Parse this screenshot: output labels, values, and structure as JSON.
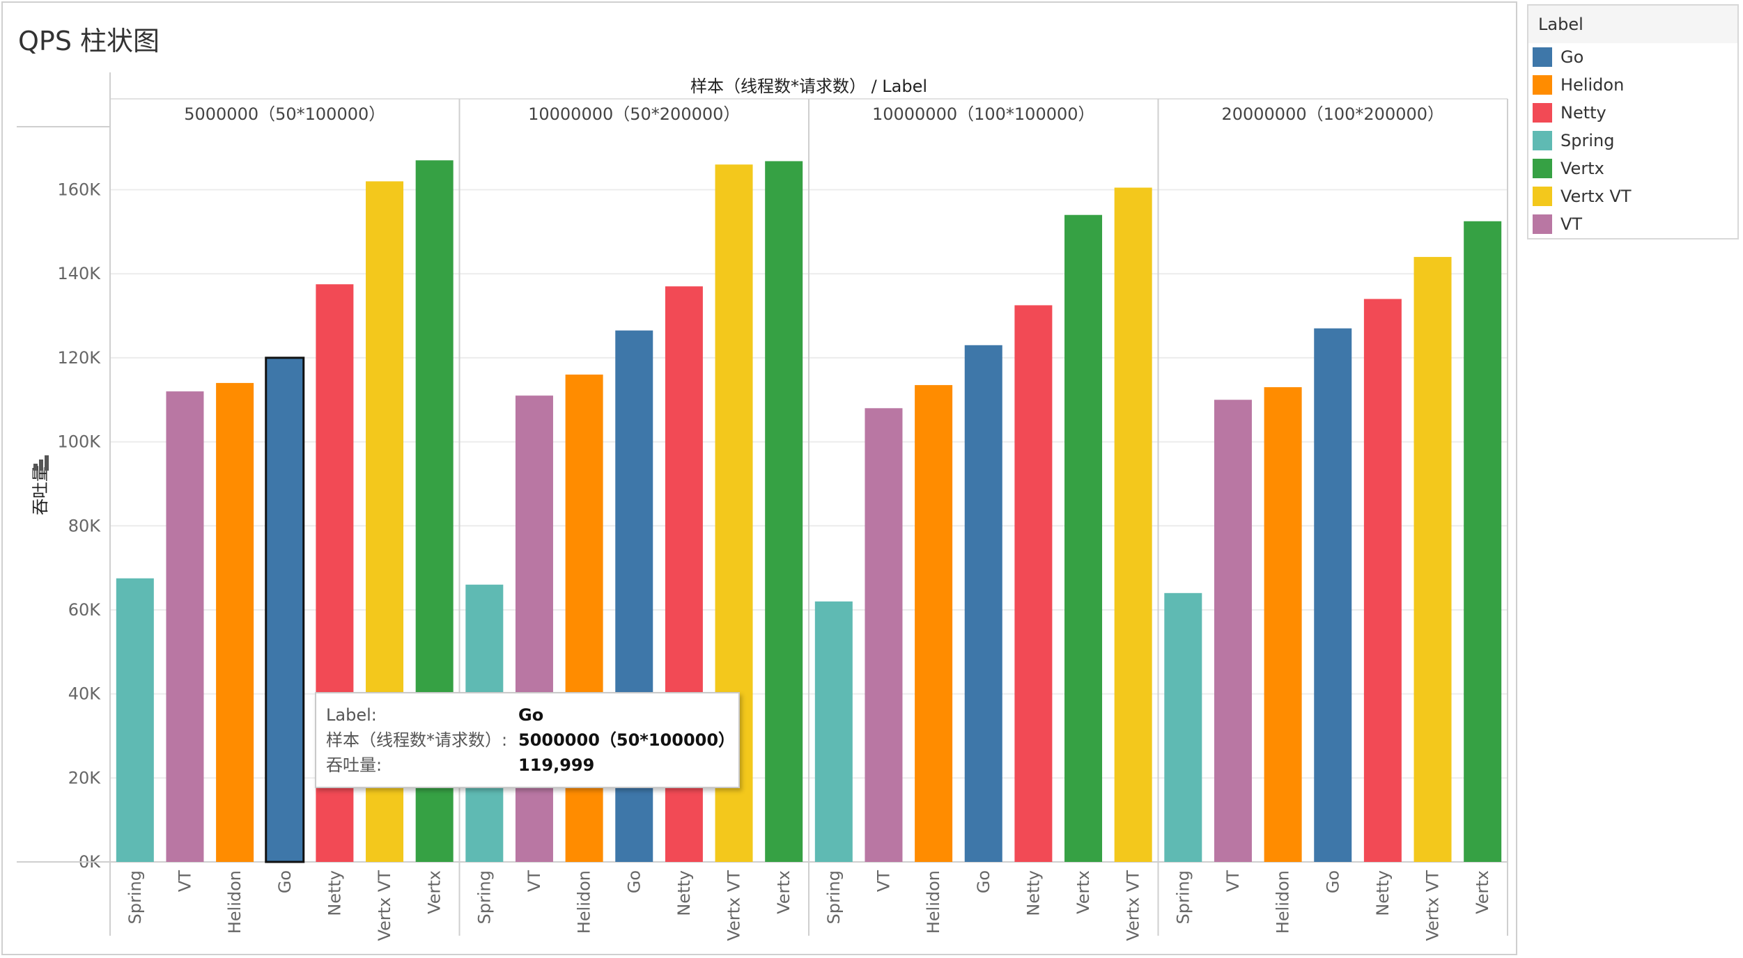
{
  "chart_data": {
    "type": "bar",
    "title": "QPS 柱状图",
    "column_header": "样本（线程数*请求数） / Label",
    "ylabel": "吞吐量",
    "ylim": [
      0,
      175000
    ],
    "yticks": [
      0,
      20000,
      40000,
      60000,
      80000,
      100000,
      120000,
      140000,
      160000
    ],
    "ytick_labels": [
      "0K",
      "20K",
      "40K",
      "60K",
      "80K",
      "100K",
      "120K",
      "140K",
      "160K"
    ],
    "grid": true,
    "legend_position": "right",
    "panels": [
      {
        "name": "5000000（50*100000）",
        "categories": [
          "Spring",
          "VT",
          "Helidon",
          "Go",
          "Netty",
          "Vertx VT",
          "Vertx"
        ],
        "values": [
          67500,
          112000,
          114000,
          119999,
          137500,
          162000,
          167000
        ]
      },
      {
        "name": "10000000（50*200000）",
        "categories": [
          "Spring",
          "VT",
          "Helidon",
          "Go",
          "Netty",
          "Vertx VT",
          "Vertx"
        ],
        "values": [
          66000,
          111000,
          116000,
          126500,
          137000,
          166000,
          166800
        ]
      },
      {
        "name": "10000000（100*100000）",
        "categories": [
          "Spring",
          "VT",
          "Helidon",
          "Go",
          "Netty",
          "Vertx",
          "Vertx VT"
        ],
        "values": [
          62000,
          108000,
          113500,
          123000,
          132500,
          154000,
          160500
        ]
      },
      {
        "name": "20000000（100*200000）",
        "categories": [
          "Spring",
          "VT",
          "Helidon",
          "Go",
          "Netty",
          "Vertx VT",
          "Vertx"
        ],
        "values": [
          64000,
          110000,
          113000,
          127000,
          134000,
          144000,
          152500
        ]
      }
    ],
    "selected": {
      "panel": 0,
      "category": "Go"
    }
  },
  "legend": {
    "title": "Label",
    "items": [
      {
        "label": "Go",
        "color": "#3e77a9"
      },
      {
        "label": "Helidon",
        "color": "#ff8c00"
      },
      {
        "label": "Netty",
        "color": "#f24a55"
      },
      {
        "label": "Spring",
        "color": "#5fbab3"
      },
      {
        "label": "Vertx",
        "color": "#36a144"
      },
      {
        "label": "Vertx VT",
        "color": "#f3c81c"
      },
      {
        "label": "VT",
        "color": "#b977a3"
      }
    ]
  },
  "tooltip": {
    "label_key": "Label:",
    "label_val": "Go",
    "sample_key": "样本（线程数*请求数）:",
    "sample_val": "5000000（50*100000）",
    "qps_key": "吞吐量:",
    "qps_val": "119,999"
  }
}
